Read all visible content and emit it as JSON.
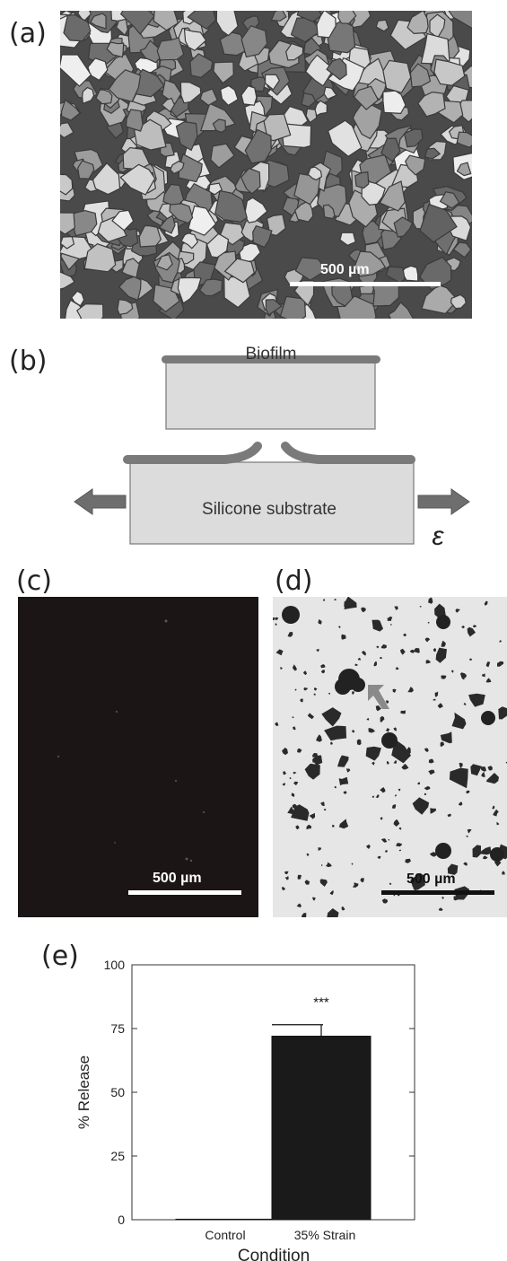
{
  "panels": {
    "a": {
      "label": "(a)",
      "scale_bar": "500 µm"
    },
    "b": {
      "label": "(b)",
      "biofilm": "Biofilm",
      "substrate": "Silicone substrate",
      "strain_symbol": "ε"
    },
    "c": {
      "label": "(c)",
      "scale_bar": "500 µm"
    },
    "d": {
      "label": "(d)",
      "scale_bar": "500 µm"
    },
    "e": {
      "label": "(e)"
    }
  },
  "chart_data": {
    "type": "bar",
    "categories": [
      "Control",
      "35% Strain"
    ],
    "values": [
      0.2,
      72
    ],
    "errors": [
      0,
      4.5
    ],
    "significance": [
      "",
      "***"
    ],
    "xlabel": "Condition",
    "ylabel": "% Release",
    "ylim": [
      0,
      100
    ],
    "yticks": [
      0,
      25,
      50,
      75,
      100
    ],
    "bar_color": "#1a1a1a",
    "grid": false
  }
}
